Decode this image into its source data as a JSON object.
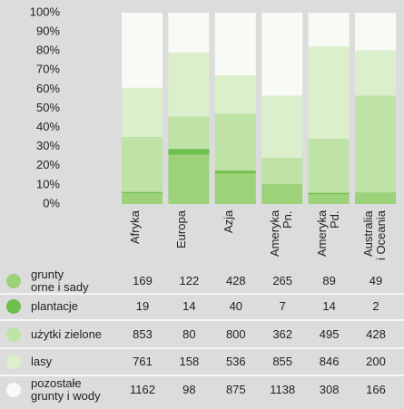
{
  "chart_data": {
    "type": "stacked_percent_bar",
    "categories": [
      "Afryka",
      "Europa",
      "Azja",
      "Ameryka\nPn.",
      "Ameryka\nPd.",
      "Australia\ni Oceania"
    ],
    "series": [
      {
        "name": "grunty\norne i sady",
        "color": "#9bd27a",
        "values": [
          169,
          122,
          428,
          265,
          89,
          49
        ]
      },
      {
        "name": "plantacje",
        "color": "#6fbf4c",
        "values": [
          19,
          14,
          40,
          7,
          14,
          2
        ]
      },
      {
        "name": "użytki zielone",
        "color": "#bfe3a6",
        "values": [
          853,
          80,
          800,
          362,
          495,
          428
        ]
      },
      {
        "name": "lasy",
        "color": "#dcefcd",
        "values": [
          761,
          158,
          536,
          855,
          846,
          200
        ]
      },
      {
        "name": "pozostałe\ngrunty i wody",
        "color": "#f8fbf5",
        "values": [
          1162,
          98,
          875,
          1138,
          308,
          166
        ]
      }
    ],
    "ylim": [
      0,
      100
    ],
    "yticks": [
      {
        "value": 0,
        "label": "0%"
      },
      {
        "value": 10,
        "label": "10%"
      },
      {
        "value": 20,
        "label": "20%"
      },
      {
        "value": 30,
        "label": "30%"
      },
      {
        "value": 40,
        "label": "40%"
      },
      {
        "value": 50,
        "label": "50%"
      },
      {
        "value": 60,
        "label": "60%"
      },
      {
        "value": 70,
        "label": "70%"
      },
      {
        "value": 80,
        "label": "80%"
      },
      {
        "value": 90,
        "label": "90%"
      },
      {
        "value": 100,
        "label": "100%"
      }
    ]
  }
}
